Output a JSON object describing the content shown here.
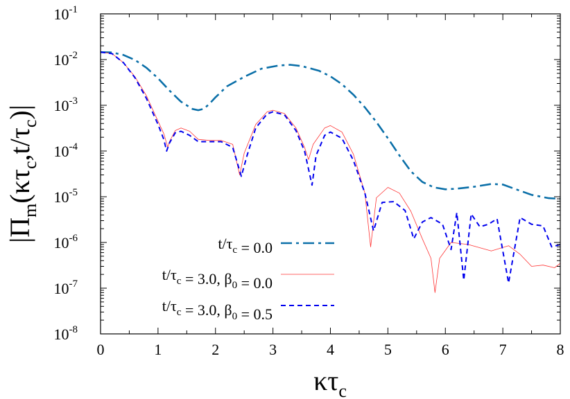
{
  "chart_data": {
    "type": "line",
    "xlabel": "κτ",
    "xlabel_sub": "c",
    "ylabel": "|Π_m(κτ_c,t/τ_c)|",
    "xlim": [
      0,
      8
    ],
    "ylim": [
      1e-08,
      0.1
    ],
    "y_scale": "log",
    "grid": false,
    "legend_position": "bottom-center",
    "x_ticks": [
      "0",
      "1",
      "2",
      "3",
      "4",
      "5",
      "6",
      "7",
      "8"
    ],
    "y_ticks": [
      {
        "base": "10",
        "exp": "-8"
      },
      {
        "base": "10",
        "exp": "-7"
      },
      {
        "base": "10",
        "exp": "-6"
      },
      {
        "base": "10",
        "exp": "-5"
      },
      {
        "base": "10",
        "exp": "-4"
      },
      {
        "base": "10",
        "exp": "-3"
      },
      {
        "base": "10",
        "exp": "-2"
      },
      {
        "base": "10",
        "exp": "-1"
      }
    ],
    "series": [
      {
        "name": "t/τc = 0.0",
        "color": "#0a6fa8",
        "dash": "dash-dot",
        "x": [
          0,
          0.2,
          0.4,
          0.6,
          0.8,
          1.0,
          1.2,
          1.4,
          1.6,
          1.7,
          1.8,
          1.9,
          2.0,
          2.2,
          2.5,
          2.8,
          3.1,
          3.3,
          3.5,
          3.8,
          4.0,
          4.2,
          4.4,
          4.6,
          4.8,
          5.0,
          5.2,
          5.4,
          5.6,
          5.8,
          6.0,
          6.2,
          6.5,
          6.8,
          7.0,
          7.2,
          7.5,
          7.8,
          8.0
        ],
        "y": [
          0.0145,
          0.0143,
          0.0126,
          0.0098,
          0.0066,
          0.0039,
          0.0021,
          0.0012,
          0.00083,
          0.00078,
          0.00084,
          0.0011,
          0.0015,
          0.0026,
          0.0042,
          0.0063,
          0.0074,
          0.0077,
          0.0072,
          0.0057,
          0.0043,
          0.0029,
          0.0017,
          0.0009,
          0.00043,
          0.00019,
          8e-05,
          3.6e-05,
          2.1e-05,
          1.6e-05,
          1.45e-05,
          1.5e-05,
          1.65e-05,
          1.9e-05,
          1.85e-05,
          1.5e-05,
          1.1e-05,
          9.3e-06,
          9e-06
        ]
      },
      {
        "name": "t/τc = 3.0, β0 = 0.0",
        "color": "#ff3333",
        "dash": "solid",
        "x": [
          0,
          0.2,
          0.4,
          0.6,
          0.8,
          1.0,
          1.1,
          1.17,
          1.2,
          1.3,
          1.4,
          1.55,
          1.7,
          1.9,
          2.1,
          2.3,
          2.42,
          2.5,
          2.7,
          2.9,
          3.0,
          3.2,
          3.4,
          3.55,
          3.62,
          3.7,
          3.9,
          4.0,
          4.2,
          4.4,
          4.6,
          4.7,
          4.8,
          5.0,
          5.2,
          5.4,
          5.6,
          5.75,
          5.82,
          5.9,
          6.1,
          6.4,
          6.8,
          7.1,
          7.3,
          7.5,
          7.7,
          7.9,
          8.0
        ],
        "y": [
          0.0145,
          0.0135,
          0.0085,
          0.0042,
          0.0016,
          0.00045,
          0.00024,
          0.00012,
          0.00016,
          0.00028,
          0.00032,
          0.00027,
          0.00018,
          0.00017,
          0.00017,
          0.00014,
          3e-05,
          9e-05,
          0.00038,
          0.00072,
          0.00078,
          0.00066,
          0.00032,
          0.00012,
          6.5e-05,
          0.00014,
          0.00032,
          0.00036,
          0.00026,
          8.5e-05,
          1.2e-05,
          8e-07,
          9.5e-06,
          1.6e-05,
          1.2e-05,
          4.8e-06,
          1.2e-06,
          4.5e-07,
          8e-08,
          4.5e-07,
          1e-06,
          9e-07,
          6.5e-07,
          8.5e-07,
          5.5e-07,
          3e-07,
          3.2e-07,
          2.8e-07,
          3.5e-07
        ]
      },
      {
        "name": "t/τc = 3.0, β0 = 0.5",
        "color": "#0000ee",
        "dash": "dashed",
        "x": [
          0,
          0.2,
          0.4,
          0.6,
          0.8,
          1.0,
          1.1,
          1.15,
          1.2,
          1.3,
          1.4,
          1.55,
          1.7,
          1.9,
          2.1,
          2.3,
          2.45,
          2.55,
          2.7,
          2.9,
          3.0,
          3.2,
          3.4,
          3.55,
          3.68,
          3.75,
          3.9,
          4.0,
          4.2,
          4.4,
          4.6,
          4.75,
          4.9,
          5.1,
          5.3,
          5.45,
          5.6,
          5.75,
          5.95,
          6.1,
          6.2,
          6.32,
          6.45,
          6.6,
          6.75,
          6.9,
          7.1,
          7.3,
          7.5,
          7.7,
          7.85,
          8.0
        ],
        "y": [
          0.0145,
          0.0135,
          0.0085,
          0.004,
          0.0014,
          0.00038,
          0.00018,
          0.0001,
          0.00015,
          0.00025,
          0.00027,
          0.00022,
          0.00016,
          0.00016,
          0.00016,
          0.00012,
          2.8e-05,
          8e-05,
          0.00032,
          0.00065,
          0.00072,
          0.00062,
          0.00028,
          0.0001,
          1.8e-05,
          8e-05,
          0.00022,
          0.00026,
          0.00019,
          6.2e-05,
          1.2e-05,
          1.8e-06,
          7.5e-06,
          7.8e-06,
          5e-06,
          1.2e-06,
          2.8e-06,
          3.5e-06,
          2.5e-06,
          7e-07,
          4.5e-06,
          1.5e-07,
          4.2e-06,
          2.2e-06,
          2.5e-06,
          3.3e-06,
          1.3e-07,
          3.5e-06,
          2.5e-06,
          2.3e-06,
          8e-07,
          9e-07
        ]
      }
    ]
  }
}
